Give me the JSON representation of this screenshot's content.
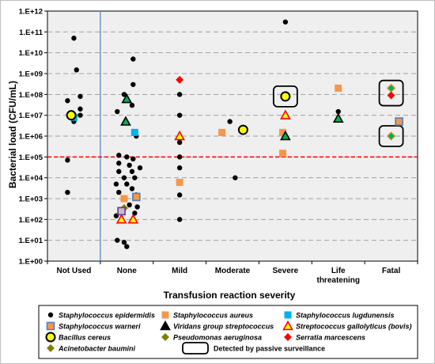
{
  "chart_data": {
    "type": "scatter",
    "title": "",
    "xlabel": "Transfusion reaction severity",
    "ylabel": "Bacterial load (CFU/mL)",
    "yscale": "log",
    "ylim": [
      1,
      1000000000000
    ],
    "yticks": [
      "1.E+00",
      "1.E+01",
      "1.E+02",
      "1.E+03",
      "1.E+04",
      "1.E+05",
      "1.E+06",
      "1.E+07",
      "1.E+08",
      "1.E+09",
      "1.E+10",
      "1.E+11",
      "1.E+12"
    ],
    "categories": [
      "Not Used",
      "None",
      "Mild",
      "Moderate",
      "Severe",
      "Life threatening",
      "Fatal"
    ],
    "category_labels": [
      [
        "Not Used"
      ],
      [
        "None"
      ],
      [
        "Mild"
      ],
      [
        "Moderate"
      ],
      [
        "Severe"
      ],
      [
        "Life",
        "threatening"
      ],
      [
        "Fatal"
      ]
    ],
    "threshold": {
      "value": 100000,
      "color": "#ff0000",
      "style": "dashed"
    },
    "grid": true,
    "legend_position": "bottom",
    "series": [
      {
        "name": "Staphylococcus epidermidis",
        "marker": "circle",
        "color": "#000000",
        "points": [
          [
            0,
            5000000,
            0.0
          ],
          [
            0,
            50000000000,
            0.0
          ],
          [
            0,
            1500000000,
            0.05
          ],
          [
            0,
            80000000,
            0.12
          ],
          [
            0,
            50000000,
            -0.12
          ],
          [
            0,
            20000000,
            0.12
          ],
          [
            0,
            10000000,
            0.12
          ],
          [
            0,
            70000,
            -0.12
          ],
          [
            0,
            2000,
            -0.12
          ],
          [
            1,
            5000000000,
            0.12
          ],
          [
            1,
            300000000,
            0.12
          ],
          [
            1,
            100000000,
            -0.05
          ],
          [
            1,
            30000000,
            0.1
          ],
          [
            1,
            15000000,
            -0.18
          ],
          [
            1,
            1000000,
            0.18
          ],
          [
            1,
            120000,
            -0.15
          ],
          [
            1,
            100000,
            0.0
          ],
          [
            1,
            80000,
            0.12
          ],
          [
            1,
            50000,
            -0.15
          ],
          [
            1,
            40000,
            0.05
          ],
          [
            1,
            30000,
            0.25
          ],
          [
            1,
            20000,
            -0.15
          ],
          [
            1,
            20000,
            0.1
          ],
          [
            1,
            10000,
            -0.05
          ],
          [
            1,
            10000,
            0.15
          ],
          [
            1,
            5000,
            0.0
          ],
          [
            1,
            5000,
            -0.2
          ],
          [
            1,
            3000,
            0.1
          ],
          [
            1,
            2000,
            -0.15
          ],
          [
            1,
            1500,
            0.18
          ],
          [
            1,
            500,
            0.05
          ],
          [
            1,
            400,
            0.2
          ],
          [
            1,
            300,
            -0.1
          ],
          [
            1,
            200,
            0.15
          ],
          [
            1,
            150,
            -0.2
          ],
          [
            1,
            10,
            -0.18
          ],
          [
            1,
            8,
            -0.05
          ],
          [
            1,
            5,
            0.0
          ],
          [
            2,
            100000000,
            0.0
          ],
          [
            2,
            10000000,
            0.0
          ],
          [
            2,
            500000,
            0.0
          ],
          [
            2,
            100000,
            0.0
          ],
          [
            2,
            30000,
            0.0
          ],
          [
            2,
            1500,
            0.0
          ],
          [
            2,
            100,
            0.0
          ],
          [
            3,
            5000000,
            -0.05
          ],
          [
            3,
            10000,
            0.05
          ],
          [
            4,
            300000000000,
            0.0
          ],
          [
            5,
            15000000,
            0.0
          ]
        ]
      },
      {
        "name": "Staphylococcus aureus",
        "marker": "square",
        "color": "#f79646",
        "points": [
          [
            1,
            1000,
            -0.05
          ],
          [
            2,
            6000,
            0.0
          ],
          [
            3,
            1500000,
            -0.2
          ],
          [
            4,
            150000,
            -0.05
          ],
          [
            4,
            1500000,
            -0.05
          ],
          [
            5,
            200000000,
            0.0
          ]
        ]
      },
      {
        "name": "Staphylococcus lugdunensis",
        "marker": "square",
        "color": "#00b0f0",
        "points": [
          [
            0,
            8000000,
            0.0
          ],
          [
            1,
            1500000,
            0.15
          ]
        ]
      },
      {
        "name": "Staphylococcus warneri",
        "marker": "square-outlined",
        "color": "#f79646",
        "edge": "#4f81bd",
        "points": [
          [
            1,
            1200,
            0.18
          ],
          [
            6,
            5000000,
            0.15
          ]
        ]
      },
      {
        "name": "Viridans group streptococcus",
        "marker": "triangle",
        "color": "#000000",
        "fill": "#00b050",
        "points": [
          [
            1,
            60000000,
            0.0
          ],
          [
            1,
            5000000,
            -0.02
          ],
          [
            4,
            1000000,
            0.0
          ],
          [
            5,
            7000000,
            0.0
          ]
        ]
      },
      {
        "name": "Streptococcus gallolyticus (bovis)",
        "marker": "triangle",
        "color": "#ff0000",
        "fill": "#ffff00",
        "points": [
          [
            1,
            100,
            -0.1
          ],
          [
            1,
            100,
            0.12
          ],
          [
            2,
            1000000,
            0.0
          ],
          [
            4,
            10000000,
            0.0
          ]
        ]
      },
      {
        "name": "Bacillus cereus",
        "marker": "circle-yellow",
        "color": "#000000",
        "fill": "#ffff00",
        "points": [
          [
            0,
            10000000,
            -0.05
          ],
          [
            3,
            2000000,
            0.2
          ],
          [
            4,
            80000000,
            0.0
          ]
        ]
      },
      {
        "name": "Pseudomonas aeruginosa",
        "marker": "diamond",
        "color": "#00b050",
        "edge": "#f79646",
        "points": [
          [
            6,
            200000000,
            0.0
          ],
          [
            6,
            1000000,
            0.0
          ]
        ]
      },
      {
        "name": "Serratia marcescens",
        "marker": "diamond",
        "color": "#ff0000",
        "points": [
          [
            2,
            500000000,
            0.0
          ],
          [
            6,
            90000000,
            0.0
          ]
        ]
      },
      {
        "name": "Acinetobacter baumini",
        "marker": "diamond",
        "color": "#808000",
        "points": [
          [
            1,
            350,
            -0.05
          ]
        ]
      },
      {
        "name": "Staphylococcus",
        "marker": "square-outlined",
        "color": "#c0c0c0",
        "edge": "#7030a0",
        "points": [
          [
            1,
            250,
            -0.1
          ]
        ]
      }
    ],
    "passive_surveillance": [
      {
        "category": 4,
        "value": 80000000
      },
      {
        "category": 6,
        "value": 150000000,
        "value2": 90000000
      },
      {
        "category": 6,
        "value": 1000000
      }
    ],
    "legend": [
      {
        "label": "Staphylococcus epidermidis",
        "marker": "circle"
      },
      {
        "label": "Staphylococcus aureus",
        "marker": "square-orange"
      },
      {
        "label": "Staphylococcus lugdunensis",
        "marker": "square-blue"
      },
      {
        "label": "Staphylococcus warneri",
        "marker": "square-warneri"
      },
      {
        "label": "Viridans group streptococcus",
        "marker": "triangle-black"
      },
      {
        "label": "Streptococcus gallolyticus (bovis)",
        "marker": "triangle-yellow"
      },
      {
        "label": "Bacillus cereus",
        "marker": "circle-yellow"
      },
      {
        "label": "Pseudomonas aeruginosa",
        "marker": "diamond-olive"
      },
      {
        "label": "Serratia marcescens",
        "marker": "diamond-red"
      },
      {
        "label": "Acinetobacter baumini",
        "marker": "diamond-olive"
      },
      {
        "label": "Detected by passive surveillance",
        "marker": "box"
      }
    ],
    "colors": {
      "plot_bg": "#efefef",
      "grid": "#a0a0a0",
      "divider": "#4f81bd",
      "threshold": "#ff0000"
    }
  }
}
